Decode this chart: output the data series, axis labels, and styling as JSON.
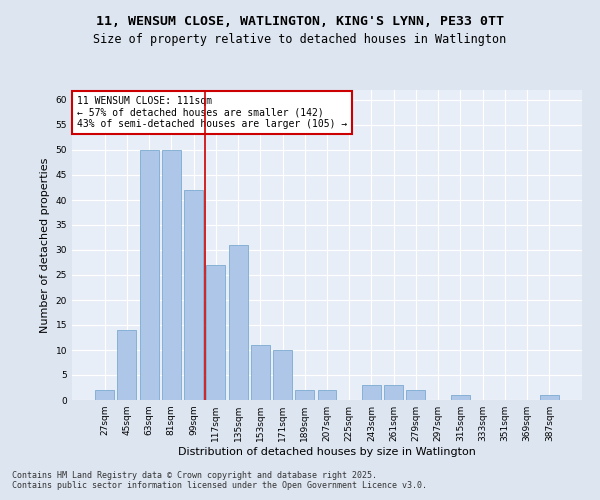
{
  "title_line1": "11, WENSUM CLOSE, WATLINGTON, KING'S LYNN, PE33 0TT",
  "title_line2": "Size of property relative to detached houses in Watlington",
  "xlabel": "Distribution of detached houses by size in Watlington",
  "ylabel": "Number of detached properties",
  "categories": [
    "27sqm",
    "45sqm",
    "63sqm",
    "81sqm",
    "99sqm",
    "117sqm",
    "135sqm",
    "153sqm",
    "171sqm",
    "189sqm",
    "207sqm",
    "225sqm",
    "243sqm",
    "261sqm",
    "279sqm",
    "297sqm",
    "315sqm",
    "333sqm",
    "351sqm",
    "369sqm",
    "387sqm"
  ],
  "values": [
    2,
    14,
    50,
    50,
    42,
    27,
    31,
    11,
    10,
    2,
    2,
    0,
    3,
    3,
    2,
    0,
    1,
    0,
    0,
    0,
    1
  ],
  "bar_color": "#aec6e8",
  "bar_edge_color": "#7aaad0",
  "vline_x_idx": 4.5,
  "vline_color": "#cc0000",
  "annotation_text": "11 WENSUM CLOSE: 111sqm\n← 57% of detached houses are smaller (142)\n43% of semi-detached houses are larger (105) →",
  "annotation_box_color": "#ffffff",
  "annotation_box_edge": "#cc0000",
  "ylim": [
    0,
    62
  ],
  "yticks": [
    0,
    5,
    10,
    15,
    20,
    25,
    30,
    35,
    40,
    45,
    50,
    55,
    60
  ],
  "bg_color": "#dde5f0",
  "plot_bg_color": "#e8eef7",
  "footer_line1": "Contains HM Land Registry data © Crown copyright and database right 2025.",
  "footer_line2": "Contains public sector information licensed under the Open Government Licence v3.0.",
  "title_fontsize": 9.5,
  "subtitle_fontsize": 8.5,
  "axis_label_fontsize": 8,
  "tick_fontsize": 6.5,
  "annotation_fontsize": 7,
  "footer_fontsize": 6
}
